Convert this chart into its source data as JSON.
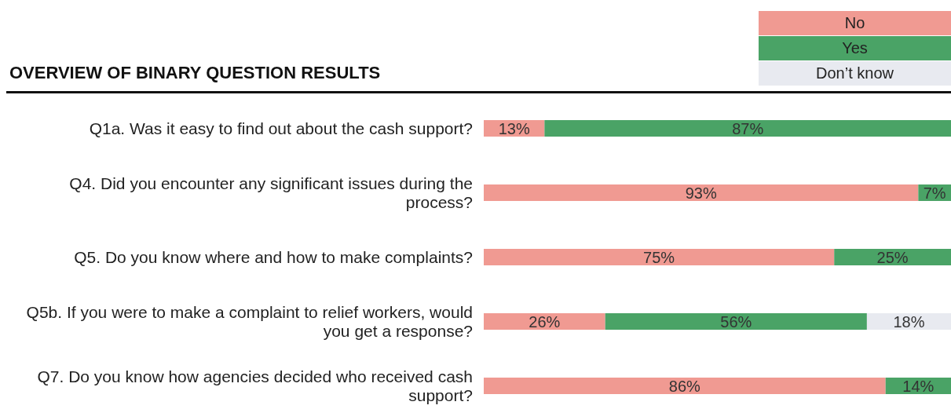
{
  "chart_data": {
    "type": "bar",
    "orientation": "horizontal",
    "stacked": true,
    "title": "OVERVIEW OF BINARY QUESTION RESULTS",
    "legend": "top right",
    "categories": [
      "Q1a. Was it easy to find out about the cash support?",
      "Q4. Did you encounter any significant issues during the process?",
      "Q5. Do you know where and how to make complaints?",
      "Q5b. If you were to make a complaint to relief workers, would you get a response?",
      "Q7. Do you know how agencies decided who received cash support?"
    ],
    "series": [
      {
        "name": "No",
        "color": "#f09a92",
        "values": [
          13,
          93,
          75,
          26,
          86
        ],
        "value_labels": [
          "13%",
          "93%",
          "75%",
          "26%",
          "86%"
        ]
      },
      {
        "name": "Yes",
        "color": "#4aa366",
        "values": [
          87,
          7,
          25,
          56,
          14
        ],
        "value_labels": [
          "87%",
          "7%",
          "25%",
          "56%",
          "14%"
        ]
      },
      {
        "name": "Don’t know",
        "color": "#e8eaf0",
        "values": [
          null,
          null,
          null,
          18,
          null
        ],
        "value_labels": [
          null,
          null,
          null,
          "18%",
          null
        ]
      }
    ]
  }
}
